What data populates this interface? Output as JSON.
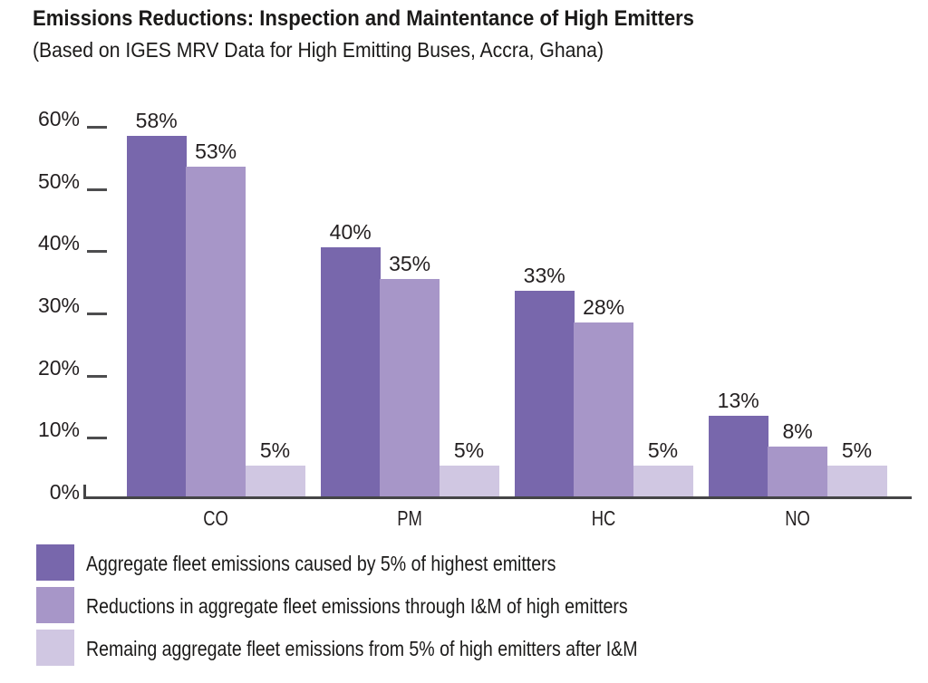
{
  "title": "Emissions Reductions: Inspection and Maintentance of High Emitters",
  "subtitle": "(Based on IGES MRV Data for High Emitting Buses, Accra, Ghana)",
  "colors": {
    "series_dark": "#7867ac",
    "series_medium": "#a796c8",
    "series_light": "#d0c7e2",
    "axis_line": "#454547",
    "tick_dash": "#4d4d4f",
    "text": "#231f20"
  },
  "chart_data": {
    "type": "bar",
    "title": "Emissions Reductions: Inspection and Maintentance of High Emitters",
    "subtitle": "(Based on IGES MRV Data for High Emitting Buses, Accra, Ghana)",
    "categories": [
      "CO",
      "PM",
      "HC",
      "NO"
    ],
    "series": [
      {
        "name": "Aggregate fleet emissions caused by 5% of highest emitters",
        "color": "#7867ac",
        "values": [
          58,
          40,
          33,
          13
        ]
      },
      {
        "name": "Reductions in aggregate fleet emissions through I&M of high emitters",
        "color": "#a796c8",
        "values": [
          53,
          35,
          28,
          8
        ]
      },
      {
        "name": "Remaing aggregate fleet emissions from 5% of high emitters after I&M",
        "color": "#d0c7e2",
        "values": [
          5,
          5,
          5,
          5
        ]
      }
    ],
    "value_label_format": "{v}%",
    "y_axis": {
      "min": 0,
      "max": 60,
      "step": 10,
      "tick_format": "{v}%"
    },
    "xlabel": "",
    "ylabel": "",
    "grid": false,
    "legend_position": "bottom"
  }
}
